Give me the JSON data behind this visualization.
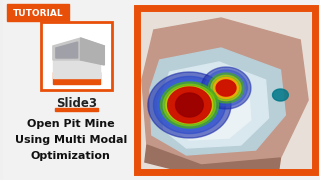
{
  "bg_color": "#f0f0f0",
  "tutorial_bg": "#E8500A",
  "tutorial_text": "TUTORIAL",
  "tutorial_text_color": "#ffffff",
  "tutorial_font_size": 6.5,
  "orange_color": "#E8500A",
  "slide_label": "Slide3",
  "slide_label_color": "#222222",
  "slide_label_fontsize": 8.5,
  "title_line1": "Open Pit Mine",
  "title_line2": "Using Multi Modal",
  "title_line3": "Optimization",
  "title_color": "#111111",
  "title_fontsize": 8,
  "separator_color": "#E8500A"
}
